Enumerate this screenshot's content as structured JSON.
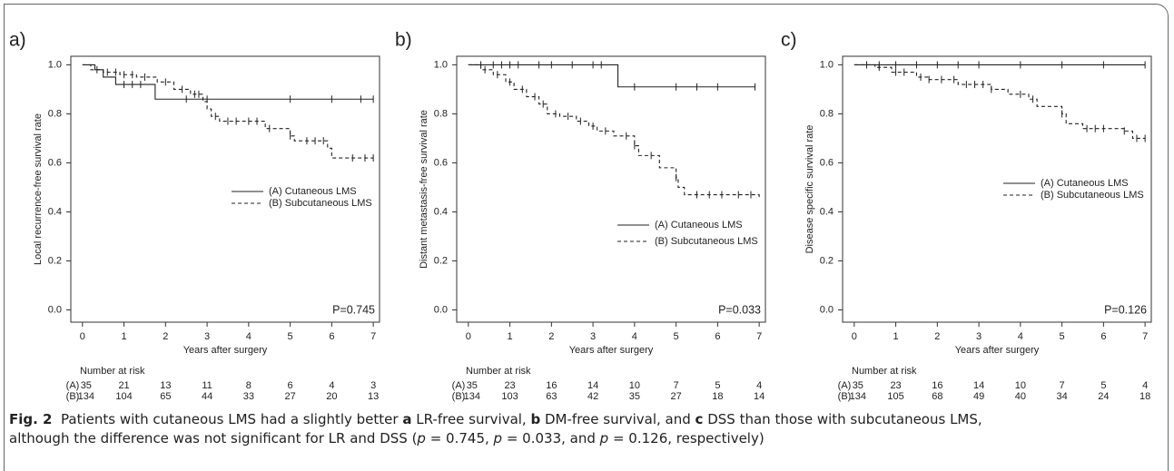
{
  "chart_data": [
    {
      "type": "step",
      "label": "a)",
      "ylabel": "Local recurrence-free survival rate",
      "xlabel": "Years after surgery",
      "annotation": "P=0.745",
      "xlim": [
        -0.28,
        7.15
      ],
      "ylim": [
        -0.05,
        1.035
      ],
      "xticks": [
        0,
        1,
        2,
        3,
        4,
        5,
        6,
        7
      ],
      "yticks": [
        {
          "value": 0,
          "label": "0.0"
        },
        {
          "value": 0.2,
          "label": "0.2"
        },
        {
          "value": 0.4,
          "label": "0.4"
        },
        {
          "value": 0.6,
          "label": "0.6"
        },
        {
          "value": 0.8,
          "label": "0.8"
        },
        {
          "value": 1,
          "label": "1.0"
        }
      ],
      "series": [
        {
          "name": "(A) Cutaneous LMS",
          "color": "#222222",
          "dash": "solid",
          "x": [
            0,
            0.3,
            0.5,
            0.8,
            1.75
          ],
          "values": [
            1,
            0.98,
            0.95,
            0.92,
            0.86
          ],
          "censored": [
            1.0,
            1.2,
            1.4,
            2.5,
            3.0,
            5.0,
            6.0,
            6.7,
            7.0
          ]
        },
        {
          "name": "(B) Subcutaneous LMS",
          "color": "#222222",
          "dash": "dashed",
          "x": [
            0,
            0.2,
            0.5,
            0.9,
            1.3,
            1.8,
            2.2,
            2.6,
            2.9,
            3.0,
            3.1,
            3.3,
            4.4,
            5.0,
            5.1,
            5.9,
            6.0
          ],
          "values": [
            1,
            0.98,
            0.97,
            0.96,
            0.95,
            0.93,
            0.9,
            0.88,
            0.85,
            0.82,
            0.79,
            0.77,
            0.74,
            0.71,
            0.69,
            0.66,
            0.62
          ],
          "censored": [
            0.35,
            0.6,
            0.8,
            1.0,
            1.2,
            1.5,
            2.0,
            2.4,
            2.7,
            2.8,
            3.2,
            3.5,
            3.7,
            4.0,
            4.2,
            4.5,
            5.0,
            5.4,
            5.6,
            5.8,
            6.5,
            6.8,
            7.0
          ]
        }
      ],
      "risk_table": {
        "title": "Number at risk",
        "rows": [
          {
            "label": "(A)",
            "values": [
              35,
              21,
              13,
              11,
              8,
              6,
              4,
              3
            ]
          },
          {
            "label": "(B)",
            "values": [
              134,
              104,
              65,
              44,
              33,
              27,
              20,
              13
            ]
          }
        ]
      }
    },
    {
      "type": "step",
      "label": "b)",
      "ylabel": "Distant metastasis-free survival rate",
      "xlabel": "Years after surgery",
      "annotation": "P=0.033",
      "xlim": [
        -0.28,
        7.15
      ],
      "ylim": [
        -0.05,
        1.035
      ],
      "xticks": [
        0,
        1,
        2,
        3,
        4,
        5,
        6,
        7
      ],
      "yticks": [
        {
          "value": 0,
          "label": "0.0"
        },
        {
          "value": 0.2,
          "label": "0.2"
        },
        {
          "value": 0.4,
          "label": "0.4"
        },
        {
          "value": 0.6,
          "label": "0.6"
        },
        {
          "value": 0.8,
          "label": "0.8"
        },
        {
          "value": 1,
          "label": "1.0"
        }
      ],
      "series": [
        {
          "name": "(A) Cutaneous LMS",
          "color": "#222222",
          "dash": "solid",
          "x": [
            0,
            3.6
          ],
          "values": [
            1,
            0.91
          ],
          "censored": [
            0.3,
            0.6,
            0.8,
            1.0,
            1.2,
            1.7,
            2.0,
            2.5,
            3.0,
            3.2,
            4.0,
            5.0,
            5.5,
            6.0,
            6.9
          ]
        },
        {
          "name": "(B) Subcutaneous LMS",
          "color": "#222222",
          "dash": "dashed",
          "x": [
            0,
            0.3,
            0.6,
            0.9,
            1.1,
            1.4,
            1.7,
            1.9,
            2.2,
            2.6,
            2.9,
            3.1,
            3.5,
            4.0,
            4.1,
            4.6,
            5.0,
            5.05,
            5.2,
            7.0
          ],
          "values": [
            1,
            0.98,
            0.96,
            0.93,
            0.9,
            0.87,
            0.84,
            0.8,
            0.79,
            0.77,
            0.75,
            0.73,
            0.71,
            0.67,
            0.63,
            0.58,
            0.54,
            0.5,
            0.47,
            0.45
          ],
          "censored": [
            0.4,
            0.7,
            1.0,
            1.3,
            1.6,
            1.8,
            2.1,
            2.4,
            2.7,
            3.0,
            3.3,
            3.8,
            4.0,
            4.4,
            5.0,
            5.5,
            5.8,
            6.1,
            6.5,
            6.8
          ]
        }
      ],
      "risk_table": {
        "title": "Number at risk",
        "rows": [
          {
            "label": "(A)",
            "values": [
              35,
              23,
              16,
              14,
              10,
              7,
              5,
              4
            ]
          },
          {
            "label": "(B)",
            "values": [
              134,
              103,
              63,
              42,
              35,
              27,
              18,
              14
            ]
          }
        ]
      }
    },
    {
      "type": "step",
      "label": "c)",
      "ylabel": "Disease specific survival rate",
      "xlabel": "Years after surgery",
      "annotation": "P=0.126",
      "xlim": [
        -0.28,
        7.15
      ],
      "ylim": [
        -0.05,
        1.035
      ],
      "xticks": [
        0,
        1,
        2,
        3,
        4,
        5,
        6,
        7
      ],
      "yticks": [
        {
          "value": 0,
          "label": "0.0"
        },
        {
          "value": 0.2,
          "label": "0.2"
        },
        {
          "value": 0.4,
          "label": "0.4"
        },
        {
          "value": 0.6,
          "label": "0.6"
        },
        {
          "value": 0.8,
          "label": "0.8"
        },
        {
          "value": 1,
          "label": "1.0"
        }
      ],
      "series": [
        {
          "name": "(A) Cutaneous LMS",
          "color": "#222222",
          "dash": "solid",
          "x": [
            0
          ],
          "values": [
            1
          ],
          "censored": [
            0.3,
            0.6,
            1.0,
            1.5,
            2.0,
            2.5,
            3.0,
            4.0,
            5.0,
            6.0,
            7.0
          ]
        },
        {
          "name": "(B) Subcutaneous LMS",
          "color": "#222222",
          "dash": "dashed",
          "x": [
            0,
            0.5,
            0.9,
            1.5,
            1.8,
            2.5,
            3.3,
            3.7,
            4.2,
            4.4,
            5.0,
            5.1,
            5.5,
            6.5,
            6.7
          ],
          "values": [
            1,
            0.99,
            0.97,
            0.95,
            0.94,
            0.92,
            0.9,
            0.88,
            0.86,
            0.83,
            0.8,
            0.76,
            0.74,
            0.73,
            0.7
          ],
          "censored": [
            0.6,
            1.0,
            1.2,
            1.6,
            1.8,
            2.1,
            2.4,
            2.7,
            2.9,
            3.1,
            3.3,
            4.0,
            4.3,
            5.0,
            5.6,
            5.8,
            6.0,
            6.5,
            6.8,
            7.0
          ]
        }
      ],
      "risk_table": {
        "title": "Number at risk",
        "rows": [
          {
            "label": "(A)",
            "values": [
              35,
              23,
              16,
              14,
              10,
              7,
              5,
              4
            ]
          },
          {
            "label": "(B)",
            "values": [
              134,
              105,
              68,
              49,
              40,
              34,
              24,
              18
            ]
          }
        ]
      }
    }
  ],
  "caption": {
    "lines": [
      [
        {
          "text": "Fig. 2",
          "style": "bold"
        },
        {
          "text": "  Patients with cutaneous LMS had a slightly better "
        },
        {
          "text": "a",
          "style": "bold"
        },
        {
          "text": " LR-free survival, "
        },
        {
          "text": "b",
          "style": "bold"
        },
        {
          "text": " DM-free survival, and "
        },
        {
          "text": "c",
          "style": "bold"
        },
        {
          "text": " DSS than those with subcutaneous LMS,"
        }
      ],
      [
        {
          "text": "although the difference was not significant for LR and DSS ("
        },
        {
          "text": "p",
          "style": "italic"
        },
        {
          "text": " = 0.745, "
        },
        {
          "text": "p",
          "style": "italic"
        },
        {
          "text": " = 0.033, and "
        },
        {
          "text": "p",
          "style": "italic"
        },
        {
          "text": " = 0.126, respectively)"
        }
      ]
    ]
  }
}
